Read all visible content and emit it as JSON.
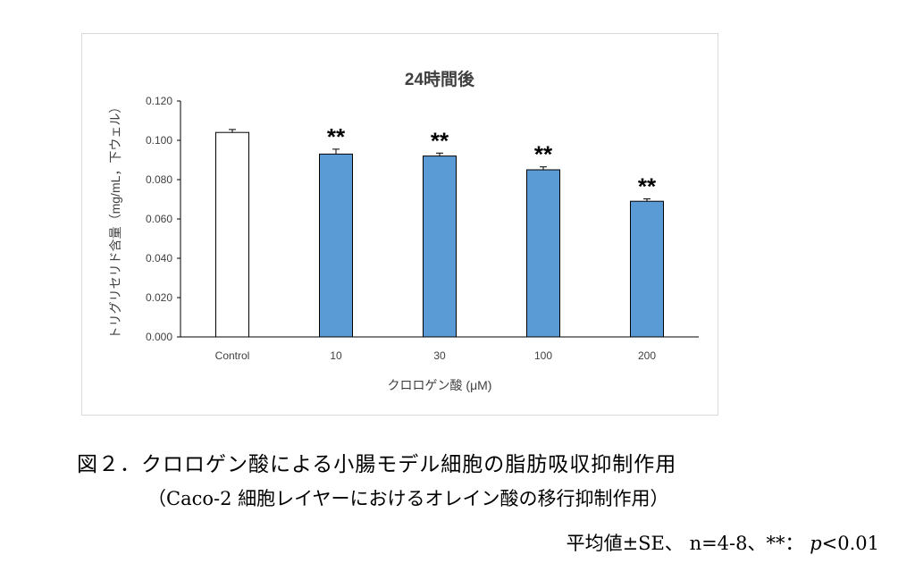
{
  "chart_data": {
    "type": "bar",
    "title": "24時間後",
    "xlabel": "クロロゲン酸 (μM)",
    "ylabel": "トリグリセリド含量（mg/mL，下ウェル）",
    "categories": [
      "Control",
      "10",
      "30",
      "100",
      "200"
    ],
    "values": [
      0.104,
      0.093,
      0.092,
      0.085,
      0.069
    ],
    "errors": [
      0.0015,
      0.0025,
      0.0015,
      0.0015,
      0.0012
    ],
    "significance": [
      "",
      "**",
      "**",
      "**",
      "**"
    ],
    "ylim": [
      0,
      0.12
    ],
    "yticks": [
      "0.000",
      "0.020",
      "0.040",
      "0.060",
      "0.080",
      "0.100",
      "0.120"
    ],
    "colors": {
      "control": "#ffffff",
      "treated": "#5b9bd5",
      "outline": "#000000"
    },
    "grid": false,
    "legend": "none"
  },
  "caption": {
    "title": "図２．クロロゲン酸による小腸モデル細胞の脂肪吸収抑制作用",
    "subtitle": "（Caco-2 細胞レイヤーにおけるオレイン酸の移行抑制作用）",
    "stats_prefix": "平均値±SE、 n=4-8、**： ",
    "stats_p": "p",
    "stats_suffix": "<0.01"
  }
}
